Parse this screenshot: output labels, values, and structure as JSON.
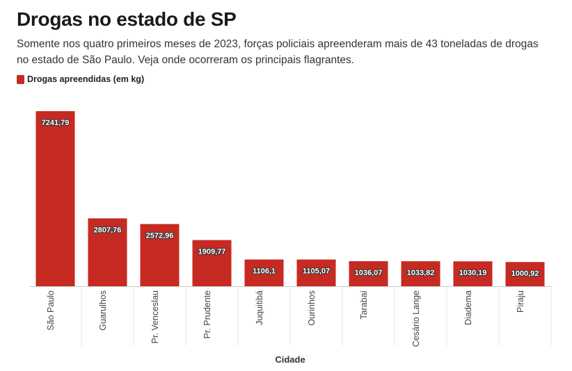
{
  "header": {
    "title": "Drogas no estado de SP",
    "subtitle": "Somente nos quatro primeiros meses de 2023, forças policiais apreenderam mais de 43 toneladas de drogas no estado de São Paulo. Veja onde ocorreram os principais flagrantes."
  },
  "colors": {
    "bar": "#c72a22",
    "gridline": "#e6e6e6",
    "baseline": "#cccccc"
  },
  "chart_data": {
    "type": "bar",
    "categories": [
      "São Paulo",
      "Guarulhos",
      "Pr. Venceslau",
      "Pr. Prudente",
      "Juquitibá",
      "Ourinhos",
      "Tarabaí",
      "Cesário Lange",
      "Diadema",
      "Piraju"
    ],
    "series": [
      {
        "name": "Drogas apreendidas (em kg)",
        "values": [
          7241.79,
          2807.76,
          2572.96,
          1909.77,
          1106.1,
          1105.07,
          1036.07,
          1033.82,
          1030.19,
          1000.92
        ],
        "value_labels": [
          "7241,79",
          "2807,76",
          "2572,96",
          "1909,77",
          "1106,1",
          "1105,07",
          "1036,07",
          "1033,82",
          "1030,19",
          "1000,92"
        ]
      }
    ],
    "xlabel": "Cidade",
    "ylabel": "",
    "ylim": [
      0,
      7300
    ],
    "legend": "top-left",
    "grid": false
  }
}
